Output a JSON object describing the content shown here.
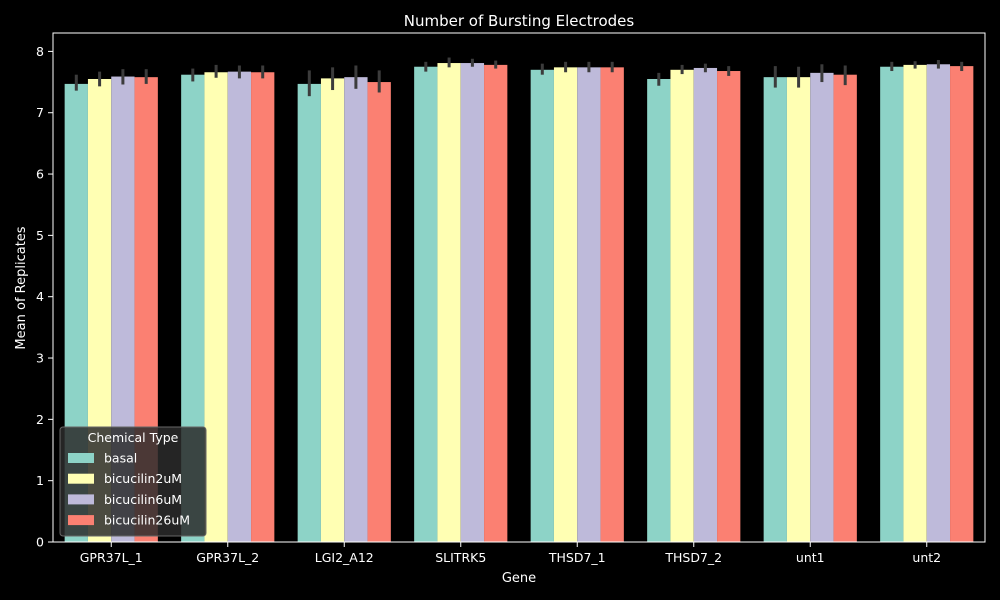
{
  "chart_data": {
    "type": "bar",
    "title": "Number of Bursting Electrodes",
    "xlabel": "Gene",
    "ylabel": "Mean of Replicates",
    "ylim": [
      0,
      8.3
    ],
    "yticks": [
      0,
      1,
      2,
      3,
      4,
      5,
      6,
      7,
      8
    ],
    "grid": false,
    "categories": [
      "GPR37L_1",
      "GPR37L_2",
      "LGI2_A12",
      "SLITRK5",
      "THSD7_1",
      "THSD7_2",
      "unt1",
      "unt2"
    ],
    "legend": {
      "title": "Chemical Type",
      "placement": "lower-left"
    },
    "series": [
      {
        "name": "basal",
        "color": "#8dd3c7",
        "values": [
          7.47,
          7.62,
          7.47,
          7.75,
          7.7,
          7.55,
          7.58,
          7.75
        ],
        "error": [
          [
            7.36,
            7.62
          ],
          [
            7.51,
            7.72
          ],
          [
            7.27,
            7.69
          ],
          [
            7.67,
            7.83
          ],
          [
            7.62,
            7.8
          ],
          [
            7.44,
            7.65
          ],
          [
            7.41,
            7.76
          ],
          [
            7.68,
            7.83
          ]
        ]
      },
      {
        "name": "bicucilin2uM",
        "color": "#ffffb3",
        "values": [
          7.55,
          7.66,
          7.56,
          7.81,
          7.74,
          7.7,
          7.58,
          7.78
        ],
        "error": [
          [
            7.43,
            7.67
          ],
          [
            7.57,
            7.78
          ],
          [
            7.37,
            7.74
          ],
          [
            7.74,
            7.9
          ],
          [
            7.66,
            7.83
          ],
          [
            7.63,
            7.78
          ],
          [
            7.41,
            7.75
          ],
          [
            7.72,
            7.84
          ]
        ]
      },
      {
        "name": "bicucilin6uM",
        "color": "#bebada",
        "values": [
          7.59,
          7.67,
          7.58,
          7.81,
          7.74,
          7.73,
          7.65,
          7.79
        ],
        "error": [
          [
            7.46,
            7.71
          ],
          [
            7.56,
            7.77
          ],
          [
            7.39,
            7.77
          ],
          [
            7.75,
            7.88
          ],
          [
            7.66,
            7.83
          ],
          [
            7.66,
            7.8
          ],
          [
            7.5,
            7.79
          ],
          [
            7.72,
            7.86
          ]
        ]
      },
      {
        "name": "bicucilin26uM",
        "color": "#fb8072",
        "values": [
          7.58,
          7.66,
          7.5,
          7.78,
          7.74,
          7.68,
          7.62,
          7.76
        ],
        "error": [
          [
            7.47,
            7.71
          ],
          [
            7.56,
            7.77
          ],
          [
            7.33,
            7.69
          ],
          [
            7.72,
            7.85
          ],
          [
            7.66,
            7.83
          ],
          [
            7.6,
            7.76
          ],
          [
            7.45,
            7.77
          ],
          [
            7.68,
            7.83
          ]
        ]
      }
    ]
  }
}
